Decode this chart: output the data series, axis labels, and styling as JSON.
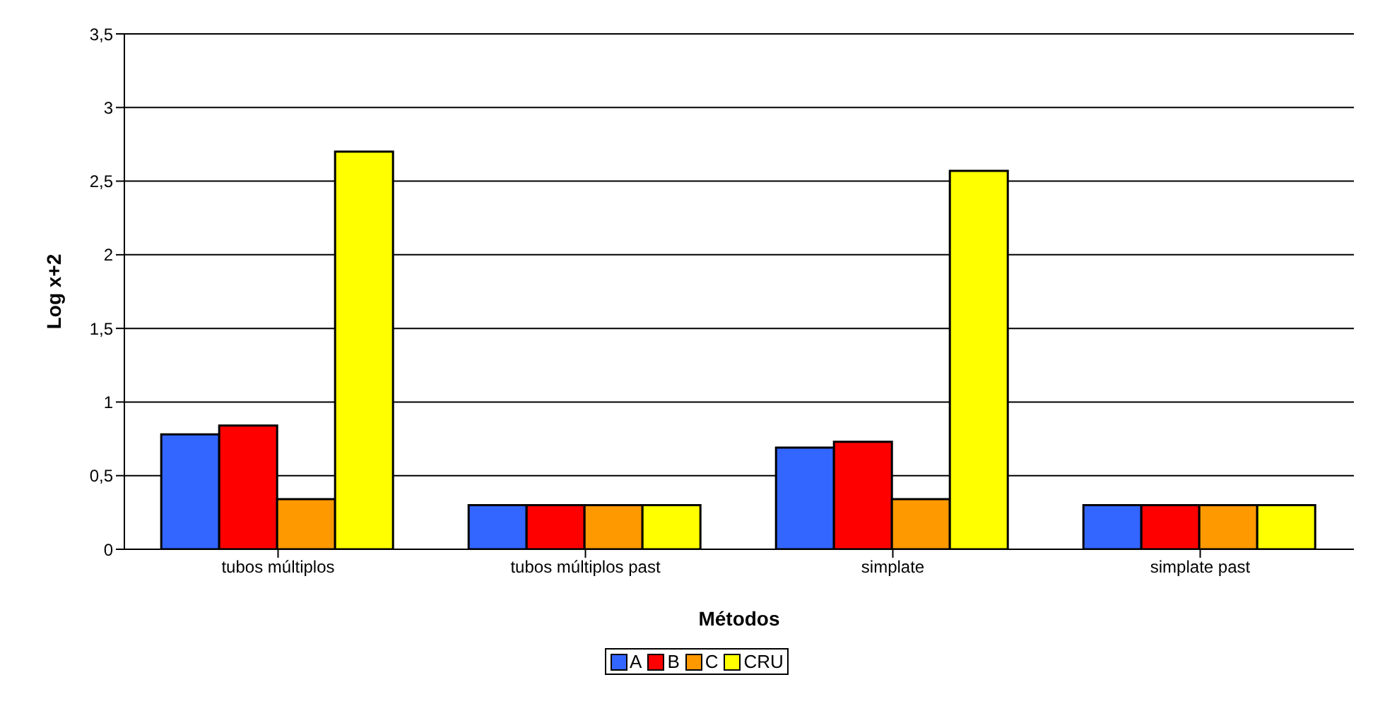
{
  "chart_data": {
    "type": "bar",
    "xlabel": "Métodos",
    "ylabel": "Log x+2",
    "categories": [
      "tubos múltiplos",
      "tubos múltiplos past",
      "simplate",
      "simplate past"
    ],
    "series": [
      {
        "name": "A",
        "color": "#3366ff",
        "values": [
          0.78,
          0.3,
          0.69,
          0.3
        ]
      },
      {
        "name": "B",
        "color": "#ff0000",
        "values": [
          0.84,
          0.3,
          0.73,
          0.3
        ]
      },
      {
        "name": "C",
        "color": "#ff9900",
        "values": [
          0.34,
          0.3,
          0.34,
          0.3
        ]
      },
      {
        "name": "CRU",
        "color": "#ffff00",
        "values": [
          2.7,
          0.3,
          2.57,
          0.3
        ]
      }
    ],
    "ylim": [
      0,
      3.5
    ],
    "yticks": [
      0,
      {
        "value": 0.5,
        "label": "0,5"
      },
      1,
      {
        "value": 1.5,
        "label": "1,5"
      },
      2,
      {
        "value": 2.5,
        "label": "2,5"
      },
      3,
      {
        "value": 3.5,
        "label": "3,5"
      }
    ],
    "grid": "y",
    "legend": "bottom"
  }
}
